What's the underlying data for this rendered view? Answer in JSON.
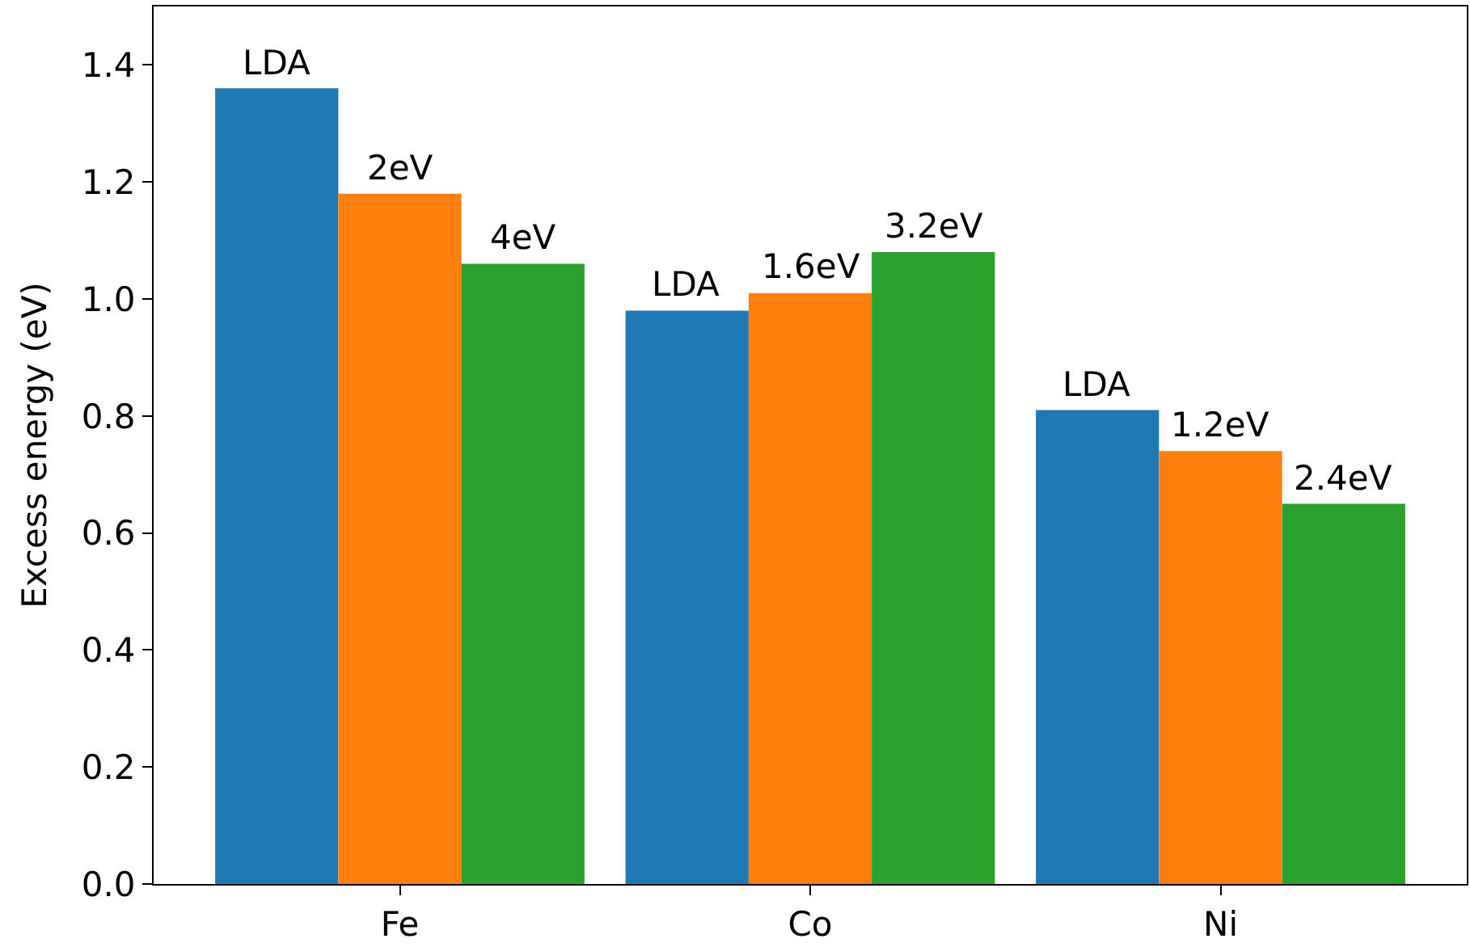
{
  "chart_data": {
    "type": "bar",
    "ylabel": "Excess energy (eV)",
    "categories": [
      "Fe",
      "Co",
      "Ni"
    ],
    "series": [
      {
        "color": "#1f77b4",
        "values": [
          1.36,
          0.98,
          0.81
        ]
      },
      {
        "color": "#ff7f0e",
        "values": [
          1.18,
          1.01,
          0.74
        ]
      },
      {
        "color": "#2ca02c",
        "values": [
          1.06,
          1.08,
          0.65
        ]
      }
    ],
    "annotations": [
      "LDA",
      "2eV",
      "4eV",
      "LDA",
      "1.6eV",
      "3.2eV",
      "LDA",
      "1.2eV",
      "2.4eV"
    ],
    "ylim": [
      0,
      1.5
    ],
    "yticks": [
      {
        "value": 0,
        "label": "0.0"
      },
      0.2,
      0.4,
      0.6,
      0.8,
      {
        "value": 1,
        "label": "1.0"
      },
      1.2,
      1.4
    ]
  }
}
